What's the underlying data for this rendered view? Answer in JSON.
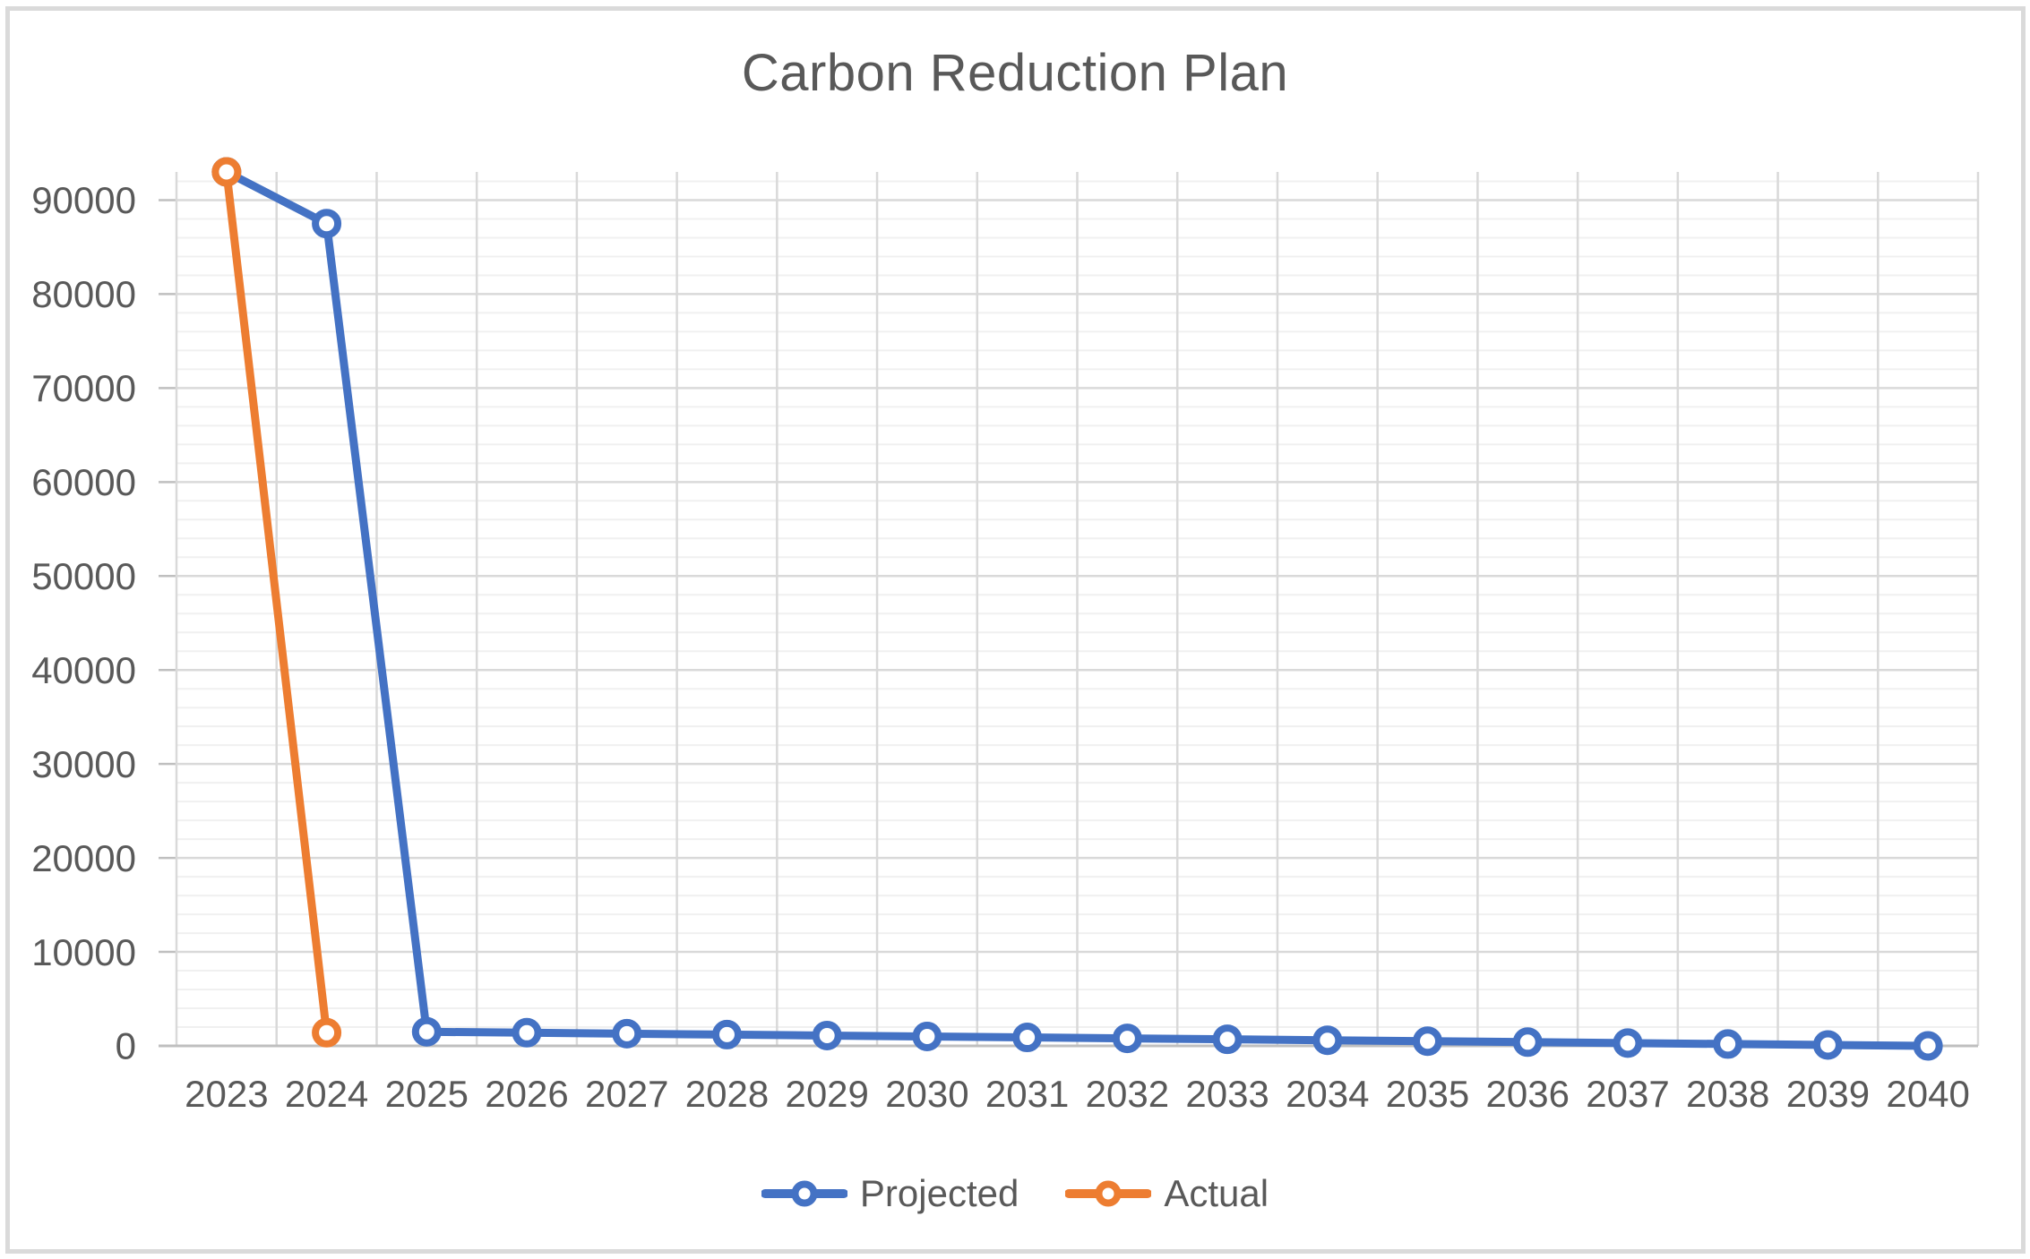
{
  "chart": {
    "title": "Carbon Reduction Plan"
  },
  "chart_data": {
    "type": "line",
    "title": "Carbon Reduction Plan",
    "categories": [
      "2023",
      "2024",
      "2025",
      "2026",
      "2027",
      "2028",
      "2029",
      "2030",
      "2031",
      "2032",
      "2033",
      "2034",
      "2035",
      "2036",
      "2037",
      "2038",
      "2039",
      "2040"
    ],
    "series": [
      {
        "name": "Projected",
        "color": "#4472C4",
        "marker": "open-circle",
        "values": [
          93000,
          87500,
          1500,
          1400,
          1300,
          1200,
          1100,
          1000,
          900,
          800,
          700,
          600,
          500,
          400,
          300,
          200,
          100,
          0
        ]
      },
      {
        "name": "Actual",
        "color": "#ED7D31",
        "marker": "open-circle",
        "values": [
          93000,
          1400,
          null,
          null,
          null,
          null,
          null,
          null,
          null,
          null,
          null,
          null,
          null,
          null,
          null,
          null,
          null,
          null
        ]
      }
    ],
    "xlabel": "",
    "ylabel": "",
    "ylim": [
      0,
      93000
    ],
    "y_major_unit": 10000,
    "y_minor_unit": 2000,
    "y_tick_labels": [
      "0",
      "10000",
      "20000",
      "30000",
      "40000",
      "50000",
      "60000",
      "70000",
      "80000",
      "90000"
    ],
    "grid": true,
    "legend_position": "bottom",
    "colors": {
      "text": "#595959",
      "major_grid": "#d9d9d9",
      "minor_grid": "#f0f0f0",
      "vertical_grid": "#d9d9d9",
      "axis_line": "#bfbfbf",
      "frame_border": "#dadada",
      "marker_fill": "#ffffff"
    }
  }
}
